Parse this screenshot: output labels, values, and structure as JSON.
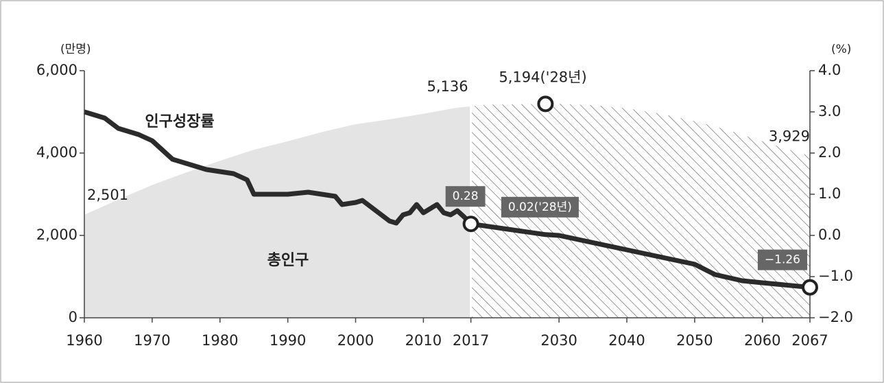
{
  "chart_data": {
    "type": "area-line",
    "ylabel": "(만명)",
    "y2label": "(%)",
    "xlim": [
      1960,
      2067
    ],
    "xticks": [
      1960,
      1970,
      1980,
      1990,
      2000,
      2010,
      2017,
      2030,
      2040,
      2050,
      2060,
      2067
    ],
    "ylim": [
      0,
      6000
    ],
    "yticks": [
      {
        "value": 0,
        "label": "0"
      },
      {
        "value": 2000,
        "label": "2,000"
      },
      {
        "value": 4000,
        "label": "4,000"
      },
      {
        "value": 6000,
        "label": "6,000"
      }
    ],
    "y2lim": [
      -2,
      4
    ],
    "y2ticks": [
      {
        "value": -2,
        "label": "−2.0"
      },
      {
        "value": -1,
        "label": "−1.0"
      },
      {
        "value": 0,
        "label": "0.0"
      },
      {
        "value": 1,
        "label": "1.0"
      },
      {
        "value": 2,
        "label": "2.0"
      },
      {
        "value": 3,
        "label": "3.0"
      },
      {
        "value": 4,
        "label": "4.0"
      }
    ],
    "projection_start": 2017,
    "series": [
      {
        "name": "총인구",
        "type": "area",
        "axis": "y",
        "color": "#e4e4e4",
        "x": [
          1960,
          1965,
          1970,
          1975,
          1980,
          1985,
          1990,
          1995,
          2000,
          2005,
          2010,
          2015,
          2017,
          2020,
          2028,
          2030,
          2035,
          2040,
          2045,
          2050,
          2055,
          2060,
          2065,
          2067
        ],
        "values": [
          2501,
          2870,
          3224,
          3528,
          3812,
          4081,
          4287,
          4509,
          4701,
          4819,
          4955,
          5102,
          5136,
          5178,
          5194,
          5193,
          5163,
          5086,
          4957,
          4774,
          4555,
          4284,
          4029,
          3929
        ],
        "value_labels": [
          "2,501",
          null,
          null,
          null,
          null,
          null,
          null,
          null,
          null,
          null,
          null,
          null,
          "5,136",
          null,
          "5,194('28년)",
          null,
          null,
          null,
          null,
          null,
          null,
          null,
          null,
          "3,929"
        ],
        "markers": [
          false,
          false,
          false,
          false,
          false,
          false,
          false,
          false,
          false,
          false,
          false,
          false,
          false,
          false,
          true,
          false,
          false,
          false,
          false,
          false,
          false,
          false,
          false,
          false
        ]
      },
      {
        "name": "인구성장률",
        "type": "line",
        "axis": "y2",
        "color": "#2b2b2b",
        "x": [
          1960,
          1963,
          1965,
          1968,
          1970,
          1973,
          1975,
          1978,
          1980,
          1982,
          1984,
          1985,
          1990,
          1993,
          1995,
          1997,
          1998,
          2000,
          2001,
          2003,
          2005,
          2006,
          2007,
          2008,
          2009,
          2010,
          2011,
          2012,
          2013,
          2014,
          2015,
          2016,
          2017,
          2028,
          2030,
          2040,
          2050,
          2053,
          2057,
          2060,
          2067
        ],
        "values": [
          3.0,
          2.85,
          2.6,
          2.45,
          2.3,
          1.85,
          1.75,
          1.6,
          1.55,
          1.5,
          1.35,
          1.0,
          1.0,
          1.05,
          1.0,
          0.95,
          0.75,
          0.8,
          0.85,
          0.6,
          0.35,
          0.3,
          0.5,
          0.55,
          0.75,
          0.55,
          0.65,
          0.75,
          0.55,
          0.5,
          0.6,
          0.45,
          0.28,
          0.02,
          0.0,
          -0.35,
          -0.7,
          -0.95,
          -1.1,
          -1.15,
          -1.26
        ],
        "value_labels": [
          null,
          null,
          null,
          null,
          null,
          null,
          null,
          null,
          null,
          null,
          null,
          null,
          null,
          null,
          null,
          null,
          null,
          null,
          null,
          null,
          null,
          null,
          null,
          null,
          null,
          null,
          null,
          null,
          null,
          null,
          null,
          null,
          "0.28",
          "0.02('28년)",
          null,
          null,
          null,
          null,
          null,
          null,
          "−1.26"
        ],
        "markers": [
          false,
          false,
          false,
          false,
          false,
          false,
          false,
          false,
          false,
          false,
          false,
          false,
          false,
          false,
          false,
          false,
          false,
          false,
          false,
          false,
          false,
          false,
          false,
          false,
          false,
          false,
          false,
          false,
          false,
          false,
          false,
          false,
          true,
          false,
          false,
          false,
          false,
          false,
          false,
          false,
          true
        ]
      }
    ]
  }
}
